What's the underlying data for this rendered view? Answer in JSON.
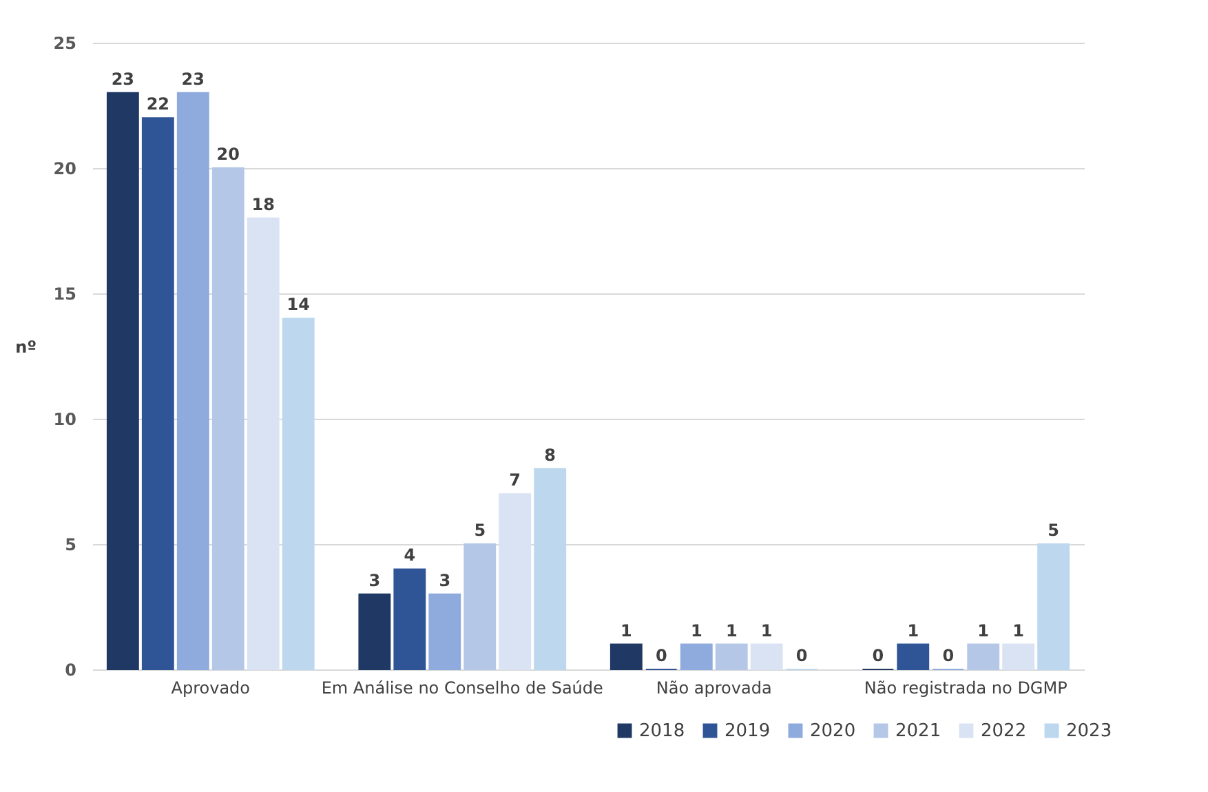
{
  "chart_data": {
    "type": "bar",
    "ylabel": "nº",
    "categories": [
      "Aprovado",
      "Em Análise no Conselho de Saúde",
      "Não aprovada",
      "Não registrada no DGMP"
    ],
    "series": [
      {
        "name": "2018",
        "color": "#1f3864",
        "values": [
          23,
          3,
          1,
          0
        ]
      },
      {
        "name": "2019",
        "color": "#2f5597",
        "values": [
          22,
          4,
          0,
          1
        ]
      },
      {
        "name": "2020",
        "color": "#8faadc",
        "values": [
          23,
          3,
          1,
          0
        ]
      },
      {
        "name": "2021",
        "color": "#b4c7e7",
        "values": [
          20,
          5,
          1,
          1
        ]
      },
      {
        "name": "2022",
        "color": "#dae3f3",
        "values": [
          18,
          7,
          1,
          1
        ]
      },
      {
        "name": "2023",
        "color": "#bdd7ee",
        "values": [
          14,
          8,
          0,
          5
        ]
      }
    ],
    "ylim": [
      0,
      25
    ],
    "yticks": [
      0,
      5,
      10,
      15,
      20,
      25
    ],
    "grid": "y",
    "legend": "bottom right",
    "data_labels": true
  }
}
